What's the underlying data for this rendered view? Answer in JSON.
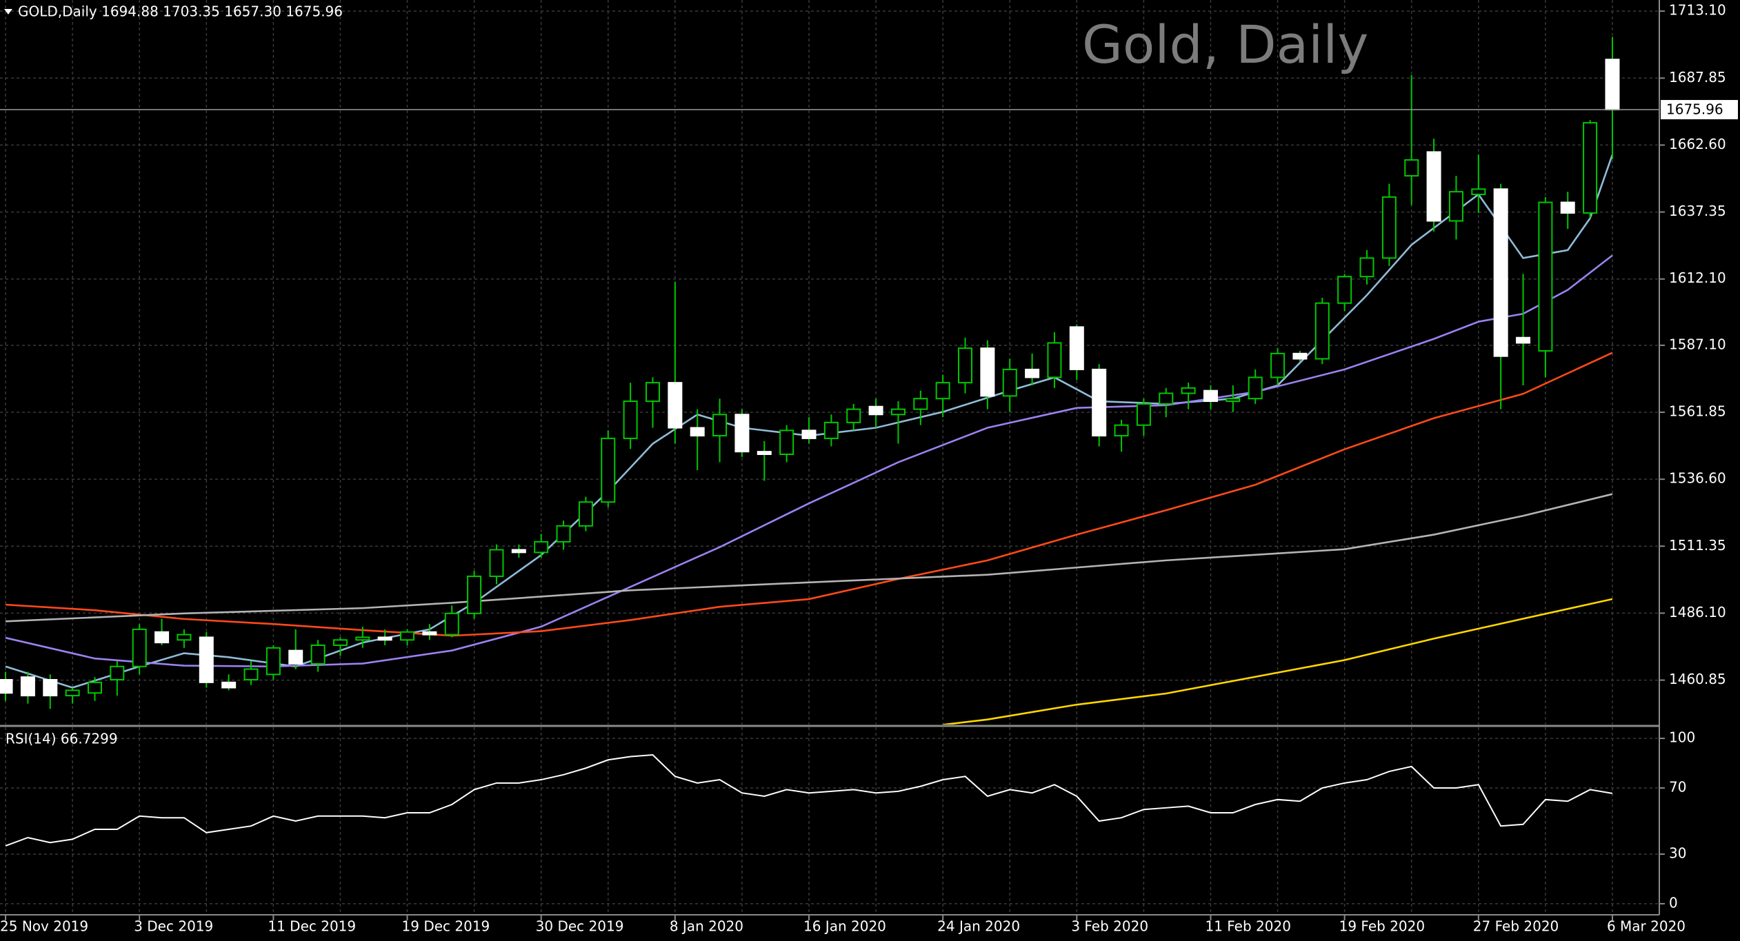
{
  "chart_data": [
    {
      "type": "candlestick",
      "title": "Gold, Daily",
      "header": "GOLD,Daily  1694.88 1703.35 1657.30 1675.96",
      "categories": [
        "25 Nov 2019",
        null,
        null,
        null,
        null,
        null,
        "3 Dec 2019",
        null,
        null,
        null,
        null,
        null,
        "11 Dec 2019",
        null,
        null,
        null,
        null,
        null,
        "19 Dec 2019",
        null,
        null,
        null,
        null,
        null,
        "30 Dec 2019",
        null,
        null,
        null,
        null,
        null,
        "8 Jan 2020",
        null,
        null,
        null,
        null,
        null,
        "16 Jan 2020",
        null,
        null,
        null,
        null,
        null,
        "24 Jan 2020",
        null,
        null,
        null,
        null,
        null,
        "3 Feb 2020",
        null,
        null,
        null,
        null,
        null,
        "11 Feb 2020",
        null,
        null,
        null,
        null,
        null,
        "19 Feb 2020",
        null,
        null,
        null,
        null,
        null,
        "27 Feb 2020",
        null,
        null,
        null,
        null,
        null,
        "6 Mar 2020"
      ],
      "open": [
        1461,
        1462,
        1461,
        1455,
        1456,
        1461,
        1466,
        1479,
        1476,
        1477,
        1460,
        1461,
        1463,
        1472,
        1467,
        1474,
        1476,
        1477,
        1476,
        1479,
        1478,
        1486,
        1500,
        1510,
        1509,
        1513,
        1519,
        1528,
        1552,
        1566,
        1573,
        1556,
        1553,
        1561,
        1547,
        1546,
        1555,
        1552,
        1558,
        1564,
        1561,
        1563,
        1567,
        1573,
        1586,
        1568,
        1578,
        1575,
        1594,
        1578,
        1553,
        1557,
        1565,
        1569,
        1570,
        1566,
        1567,
        1575,
        1584,
        1582,
        1603,
        1613,
        1620,
        1651,
        1660,
        1634,
        1644,
        1646,
        1590,
        1585,
        1641,
        1637,
        1694.88
      ],
      "high": [
        1464,
        1464,
        1463,
        1458,
        1462,
        1468,
        1482,
        1484,
        1480,
        1479,
        1463,
        1468,
        1474,
        1480,
        1476,
        1477,
        1481,
        1480,
        1480,
        1482,
        1489,
        1502,
        1512,
        1512,
        1516,
        1521,
        1530,
        1555,
        1573,
        1575,
        1611,
        1563,
        1567,
        1563,
        1551,
        1557,
        1560,
        1561,
        1565,
        1567,
        1566,
        1570,
        1576,
        1590,
        1589,
        1582,
        1584,
        1592,
        1595,
        1580,
        1559,
        1567,
        1571,
        1573,
        1572,
        1572,
        1578,
        1586,
        1585,
        1605,
        1614,
        1623,
        1648,
        1689,
        1665,
        1651,
        1659,
        1648,
        1614,
        1643,
        1645,
        1672,
        1703.35
      ],
      "low": [
        1453,
        1452,
        1450,
        1452,
        1453,
        1455,
        1463,
        1474,
        1473,
        1458,
        1457,
        1459,
        1461,
        1465,
        1464,
        1470,
        1473,
        1474,
        1474,
        1476,
        1477,
        1484,
        1497,
        1507,
        1507,
        1510,
        1517,
        1526,
        1548,
        1556,
        1550,
        1540,
        1543,
        1545,
        1536,
        1543,
        1550,
        1549,
        1555,
        1556,
        1550,
        1557,
        1560,
        1569,
        1563,
        1562,
        1572,
        1571,
        1574,
        1549,
        1547,
        1553,
        1560,
        1563,
        1563,
        1562,
        1565,
        1572,
        1581,
        1580,
        1600,
        1610,
        1617,
        1640,
        1630,
        1627,
        1637,
        1563,
        1572,
        1575,
        1631,
        1635,
        1657.3
      ],
      "close": [
        1456,
        1455,
        1455,
        1457,
        1460,
        1466,
        1480,
        1475,
        1478,
        1460,
        1458,
        1465,
        1473,
        1467,
        1474,
        1476,
        1477,
        1476,
        1479,
        1478,
        1486,
        1500,
        1510,
        1509,
        1513,
        1519,
        1528,
        1552,
        1566,
        1573,
        1556,
        1553,
        1561,
        1547,
        1546,
        1555,
        1552,
        1558,
        1563,
        1561,
        1563,
        1567,
        1573,
        1586,
        1568,
        1578,
        1575,
        1588,
        1578,
        1553,
        1557,
        1565,
        1569,
        1571,
        1566,
        1567,
        1575,
        1584,
        1582,
        1603,
        1613,
        1620,
        1643,
        1657,
        1634,
        1645,
        1646,
        1583,
        1588,
        1641,
        1637,
        1671,
        1675.96
      ],
      "up_color": "#000000",
      "down_color": "#ffffff",
      "wick_color": "#00c800",
      "series": [
        {
          "color": "#8fbcd8",
          "x": [
            0,
            3,
            6,
            8,
            10,
            13,
            16,
            19,
            21,
            24,
            27,
            29,
            31,
            33,
            36,
            39,
            42,
            45,
            47,
            49,
            52,
            55,
            57,
            59,
            61,
            63,
            66,
            68,
            70,
            71,
            72
          ],
          "values": [
            1466,
            1458,
            1466,
            1471,
            1469.5,
            1466,
            1475,
            1480,
            1490,
            1508,
            1532,
            1550,
            1561,
            1556,
            1553,
            1556,
            1562,
            1570,
            1575,
            1566,
            1565,
            1567,
            1572,
            1589,
            1606,
            1625,
            1644,
            1620,
            1623,
            1635,
            1659
          ]
        },
        {
          "color": "#9b82f0",
          "x": [
            0,
            4,
            8,
            12,
            16,
            20,
            24,
            28,
            32,
            36,
            40,
            44,
            48,
            52,
            56,
            60,
            64,
            66,
            68,
            70,
            72
          ],
          "values": [
            1476.8,
            1469,
            1466.3,
            1466,
            1467.1,
            1472,
            1481,
            1496,
            1511,
            1527.5,
            1543,
            1556,
            1563.5,
            1564.5,
            1569.5,
            1578,
            1589.5,
            1596,
            1599,
            1608,
            1621
          ]
        },
        {
          "color": "#ff4a1a",
          "x": [
            0,
            4,
            8,
            12,
            16,
            20,
            24,
            28,
            32,
            36,
            40,
            44,
            48,
            52,
            56,
            60,
            64,
            68,
            72
          ],
          "values": [
            1489.3,
            1487.2,
            1483.9,
            1482,
            1479.7,
            1477.6,
            1479.3,
            1483.5,
            1488.5,
            1491.4,
            1499,
            1506,
            1515.7,
            1524.9,
            1534.5,
            1547.9,
            1559.6,
            1568.8,
            1584.3
          ]
        },
        {
          "color": "#b4b4b4",
          "x": [
            0,
            8,
            16,
            20,
            28,
            36,
            44,
            52,
            60,
            64,
            68,
            72
          ],
          "values": [
            1483,
            1486,
            1488,
            1490,
            1494.7,
            1497.7,
            1500.6,
            1506,
            1510.2,
            1515.7,
            1522.8,
            1531
          ]
        },
        {
          "color": "#ffd700",
          "x": [
            42,
            44,
            48,
            52,
            56,
            60,
            64,
            68,
            72
          ],
          "values": [
            1444,
            1446,
            1451.6,
            1455.8,
            1462.1,
            1468.4,
            1476.5,
            1484,
            1491.4
          ]
        }
      ],
      "current_price": 1675.96,
      "ylim": [
        1444.1,
        1717.3
      ],
      "yticks": [
        {
          "value": 1713.1,
          "label": "1713.10"
        },
        1687.85,
        {
          "value": 1662.6,
          "label": "1662.60"
        },
        1637.35,
        {
          "value": 1612.1,
          "label": "1612.10"
        },
        {
          "value": 1587.1,
          "label": "1587.10"
        },
        1561.85,
        {
          "value": 1536.6,
          "label": "1536.60"
        },
        1511.35,
        {
          "value": 1486.1,
          "label": "1486.10"
        },
        1460.85
      ],
      "grid": true
    },
    {
      "type": "line",
      "title": "RSI(14) 66.7299",
      "color": "#ffffff",
      "values": [
        35,
        40,
        37,
        39,
        45,
        45,
        53,
        52,
        52,
        43,
        45,
        47,
        53,
        50,
        53,
        53,
        53,
        52,
        55,
        55,
        60,
        69,
        73,
        73,
        75,
        78,
        82,
        87,
        89,
        90,
        77,
        73,
        75,
        67,
        65,
        69,
        67,
        68,
        69,
        67,
        68,
        71,
        75,
        77,
        65,
        69,
        67,
        72,
        65,
        50,
        52,
        57,
        58,
        59,
        55,
        55,
        60,
        63,
        62,
        70,
        73,
        75,
        80,
        83,
        70,
        70,
        72,
        47,
        48,
        63,
        62,
        69,
        66.7299
      ],
      "ylim": [
        -6.7,
        106.7
      ],
      "yticks": [
        100,
        70,
        30,
        0
      ],
      "grid": true
    }
  ]
}
